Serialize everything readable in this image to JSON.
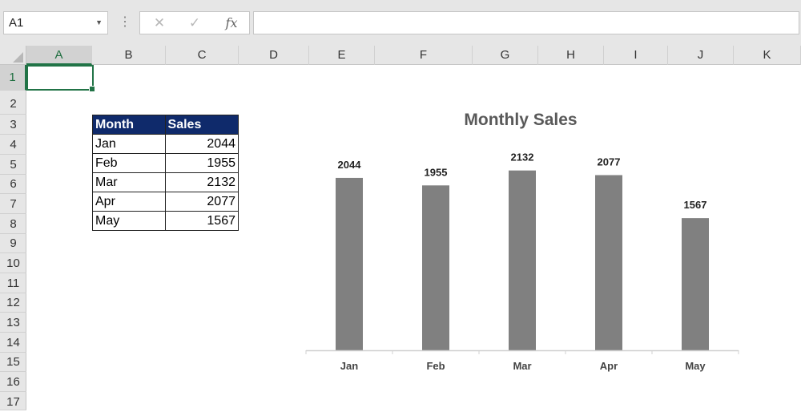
{
  "name_box": {
    "value": "A1"
  },
  "formula_bar": {
    "cancel_icon": "close-icon",
    "enter_icon": "checkmark-icon",
    "fx_label": "fx",
    "value": ""
  },
  "columns": [
    "A",
    "B",
    "C",
    "D",
    "E",
    "F",
    "G",
    "H",
    "I",
    "J",
    "K"
  ],
  "rows": [
    "1",
    "2",
    "3",
    "4",
    "5",
    "6",
    "7",
    "8",
    "9",
    "10",
    "11",
    "12",
    "13",
    "14",
    "15",
    "16",
    "17"
  ],
  "table": {
    "header": {
      "month": "Month",
      "sales": "Sales"
    },
    "rows": [
      {
        "month": "Jan",
        "sales": "2044"
      },
      {
        "month": "Feb",
        "sales": "1955"
      },
      {
        "month": "Mar",
        "sales": "2132"
      },
      {
        "month": "Apr",
        "sales": "2077"
      },
      {
        "month": "May",
        "sales": "1567"
      }
    ]
  },
  "colors": {
    "accent": "#217346",
    "table_header_bg": "#0f2a6b",
    "bar": "#808080"
  },
  "chart_data": {
    "type": "bar",
    "title": "Monthly Sales",
    "categories": [
      "Jan",
      "Feb",
      "Mar",
      "Apr",
      "May"
    ],
    "values": [
      2044,
      1955,
      2132,
      2077,
      1567
    ],
    "xlabel": "",
    "ylabel": "",
    "ylim": [
      0,
      2300
    ],
    "grid": false,
    "legend": "none",
    "data_labels": true
  }
}
